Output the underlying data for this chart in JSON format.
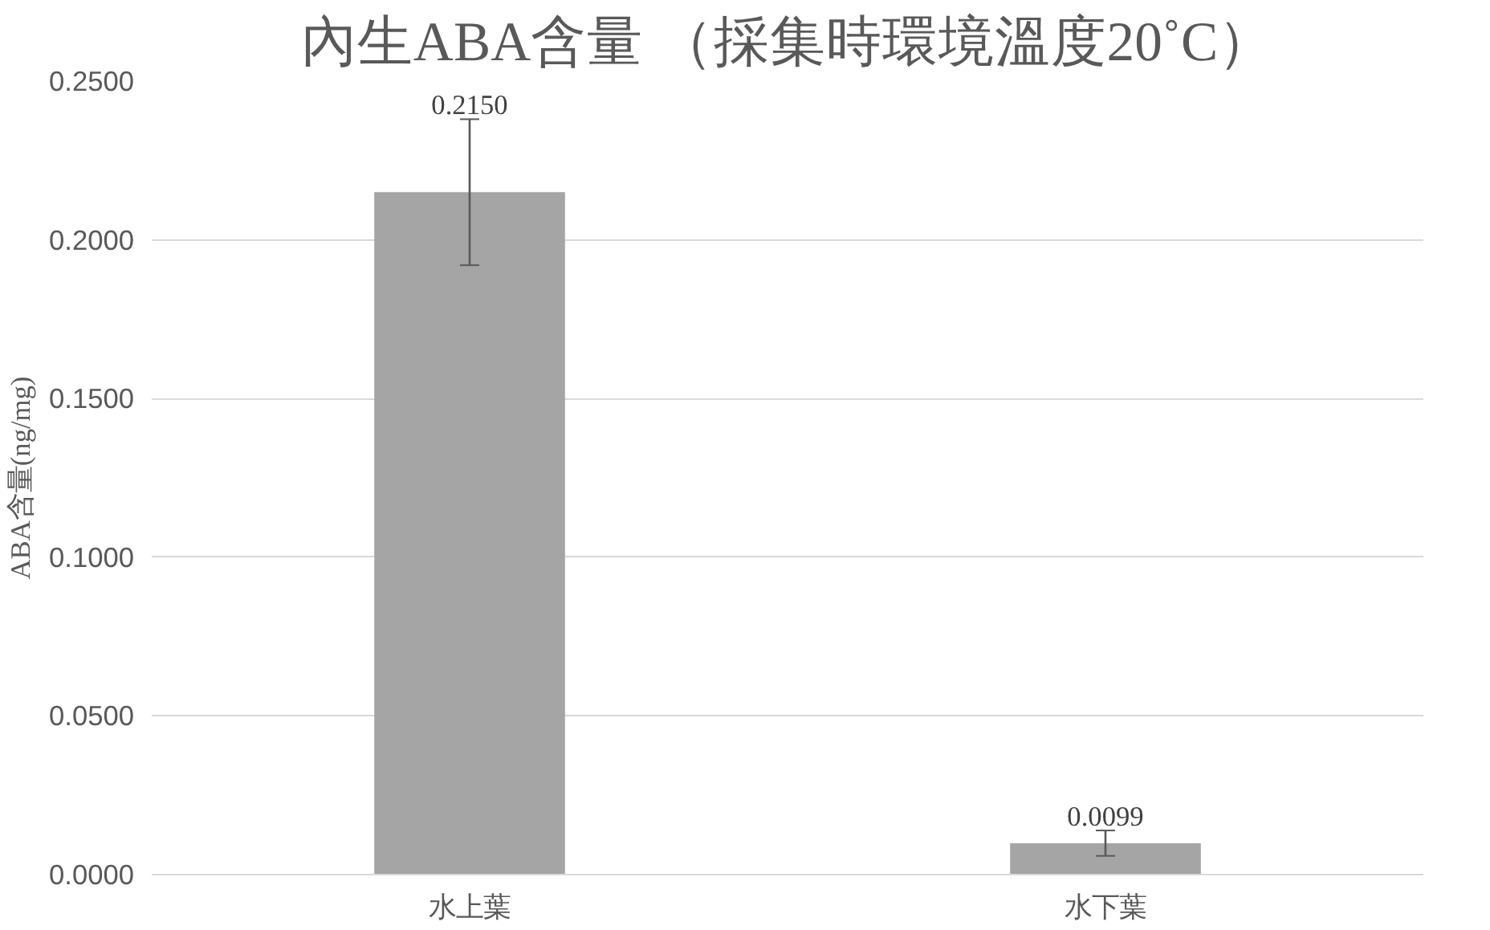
{
  "chart_data": {
    "type": "bar",
    "title": "內生ABA含量 （採集時環境溫度20˚C）",
    "ylabel": "ABA含量(ng/mg)",
    "categories": [
      "水上葉",
      "水下葉"
    ],
    "values": [
      0.215,
      0.0099
    ],
    "errors": [
      0.023,
      0.004
    ],
    "value_labels": [
      "0.2150",
      "0.0099"
    ],
    "color": "#a5a5a5",
    "ylim": [
      0,
      0.25
    ],
    "yticks": [
      {
        "value": 0,
        "label": "0.0000"
      },
      {
        "value": 0.05,
        "label": "0.0500"
      },
      {
        "value": 0.1,
        "label": "0.1000"
      },
      {
        "value": 0.15,
        "label": "0.1500"
      },
      {
        "value": 0.2,
        "label": "0.2000"
      },
      {
        "value": 0.25,
        "label": "0.2500"
      }
    ],
    "grid": "y"
  }
}
